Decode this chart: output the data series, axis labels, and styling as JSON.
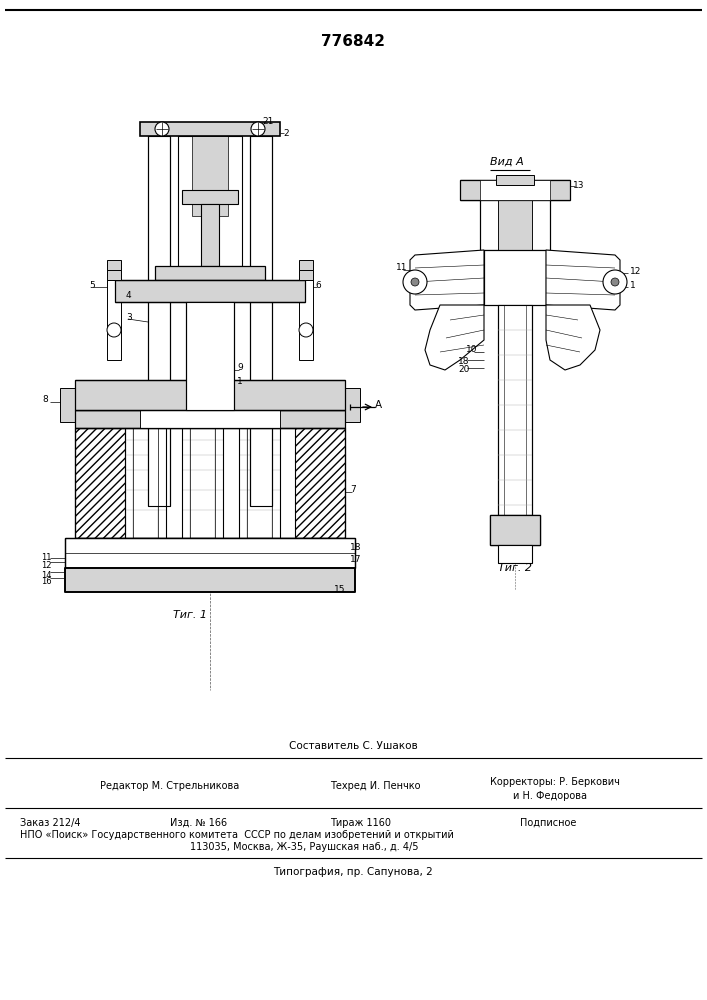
{
  "title": "776842",
  "fig1_label": "Τиг. 1",
  "fig2_label": "Τиг. 2",
  "view_label": "Вид A",
  "sestavitel": "Составитель С. Ушаков",
  "editor": "Редактор М. Стрельникова",
  "tekhred": "Техред И. Пенчко",
  "korrektory": "Корректоры: Р. Беркович",
  "korrektory2": "и Н. Федорова",
  "zakaz": "Заказ 212/4",
  "izd": "Изд. № 166",
  "tirazh": "Тираж 1160",
  "podpisnoe": "Подписное",
  "npo": "НПО «Поиск» Государственного комитета  СССР по делам изобретений и открытий",
  "address": "113035, Москва, Ж-35, Раушская наб., д. 4/5",
  "tipografiya": "Типография, пр. Сапунова, 2",
  "bg_color": "#ffffff",
  "line_color": "#000000",
  "hatch_color": "#000000",
  "gray_light": "#d4d4d4",
  "gray_mid": "#b0b0b0"
}
